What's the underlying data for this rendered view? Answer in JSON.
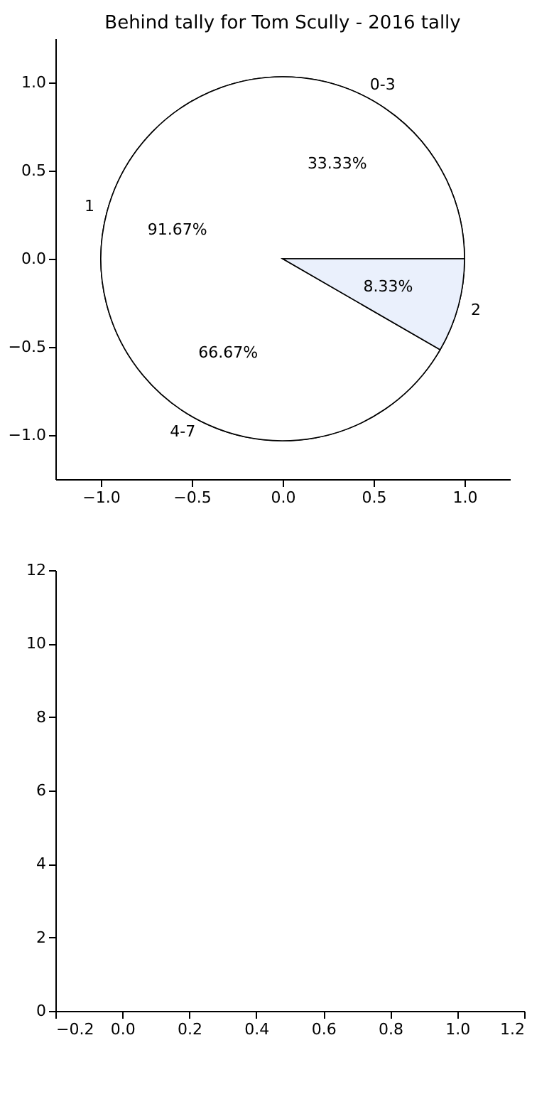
{
  "chart_data": [
    {
      "type": "pie",
      "title": "Behind tally for Tom Scully - 2016 tally",
      "categories": [
        "0-3",
        "4-7"
      ],
      "values": [
        33.33,
        66.67
      ],
      "value_labels": [
        "33.33%",
        "66.67%"
      ],
      "colors": [
        "#ffffff",
        "#ffffff"
      ]
    },
    {
      "type": "pie",
      "categories": [
        "1",
        "2"
      ],
      "values": [
        91.67,
        8.33
      ],
      "value_labels": [
        "91.67%",
        "8.33%"
      ],
      "colors": [
        "#ffffff",
        "#eaf0fc"
      ]
    },
    {
      "type": "scatter",
      "xlim": [
        -1.25,
        1.25
      ],
      "ylim": [
        -1.25,
        1.25
      ],
      "xticks": [
        {
          "value": -1.0,
          "label": "−1.0"
        },
        {
          "value": -0.5,
          "label": "−0.5"
        },
        {
          "value": 0,
          "label": "0.0"
        },
        {
          "value": 0.5,
          "label": "0.5"
        },
        {
          "value": 1,
          "label": "1.0"
        }
      ],
      "yticks": [
        {
          "value": -1.0,
          "label": "−1.0"
        },
        {
          "value": -0.5,
          "label": "−0.5"
        },
        {
          "value": 0,
          "label": "0.0"
        },
        {
          "value": 0.5,
          "label": "0.5"
        },
        {
          "value": 1,
          "label": "1.0"
        }
      ]
    },
    {
      "type": "scatter",
      "xlim": [
        -0.2,
        1.2
      ],
      "ylim": [
        0,
        12
      ],
      "xticks": [
        {
          "value": -0.2,
          "label": "−0.2"
        },
        {
          "value": 0,
          "label": "0.0"
        },
        {
          "value": 0.2,
          "label": "0.2"
        },
        {
          "value": 0.4,
          "label": "0.4"
        },
        {
          "value": 0.6,
          "label": "0.6"
        },
        {
          "value": 0.8,
          "label": "0.8"
        },
        {
          "value": 1,
          "label": "1.0"
        },
        {
          "value": 1.2,
          "label": "1.2"
        }
      ],
      "yticks": [
        0,
        2,
        4,
        6,
        8,
        10,
        12
      ]
    }
  ]
}
